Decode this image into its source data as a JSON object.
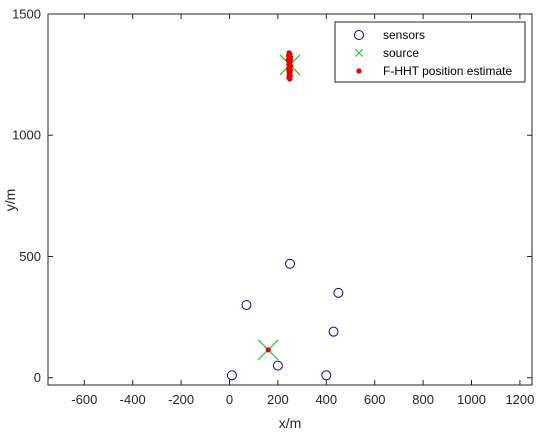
{
  "chart_data": {
    "type": "scatter",
    "xlabel": "x/m",
    "ylabel": "y/m",
    "xlim": [
      -750,
      1250
    ],
    "ylim": [
      -30,
      1500
    ],
    "xticks": [
      -600,
      -400,
      -200,
      0,
      200,
      400,
      600,
      800,
      1000,
      1200
    ],
    "yticks": [
      0,
      500,
      1000,
      1500
    ],
    "grid": false,
    "legend_position": "top-right",
    "legend": [
      {
        "name": "sensors",
        "marker": "circle",
        "color": "#0000cc"
      },
      {
        "name": "source",
        "marker": "x",
        "color": "#22cc22"
      },
      {
        "name": "F-HHT position estimate",
        "marker": "dot",
        "color": "#ee0000"
      }
    ],
    "series": [
      {
        "name": "sensors",
        "marker": "circle",
        "color": "#0000cc",
        "points": [
          [
            10,
            10
          ],
          [
            200,
            50
          ],
          [
            400,
            10
          ],
          [
            430,
            190
          ],
          [
            450,
            350
          ],
          [
            70,
            300
          ],
          [
            250,
            470
          ]
        ]
      },
      {
        "name": "source",
        "marker": "x",
        "color": "#22cc22",
        "points": [
          [
            160,
            115
          ],
          [
            250,
            1290
          ]
        ]
      },
      {
        "name": "F-HHT position estimate",
        "marker": "dot",
        "color": "#ee0000",
        "points": [
          [
            160,
            115
          ],
          [
            246,
            1340
          ],
          [
            250,
            1334
          ],
          [
            244,
            1328
          ],
          [
            252,
            1322
          ],
          [
            247,
            1316
          ],
          [
            243,
            1310
          ],
          [
            251,
            1304
          ],
          [
            249,
            1298
          ],
          [
            245,
            1292
          ],
          [
            253,
            1286
          ],
          [
            248,
            1280
          ],
          [
            244,
            1274
          ],
          [
            252,
            1268
          ],
          [
            246,
            1262
          ],
          [
            250,
            1256
          ],
          [
            247,
            1250
          ],
          [
            251,
            1244
          ],
          [
            245,
            1238
          ],
          [
            249,
            1232
          ],
          [
            248,
            1300
          ],
          [
            246,
            1270
          ],
          [
            252,
            1310
          ]
        ]
      }
    ]
  }
}
